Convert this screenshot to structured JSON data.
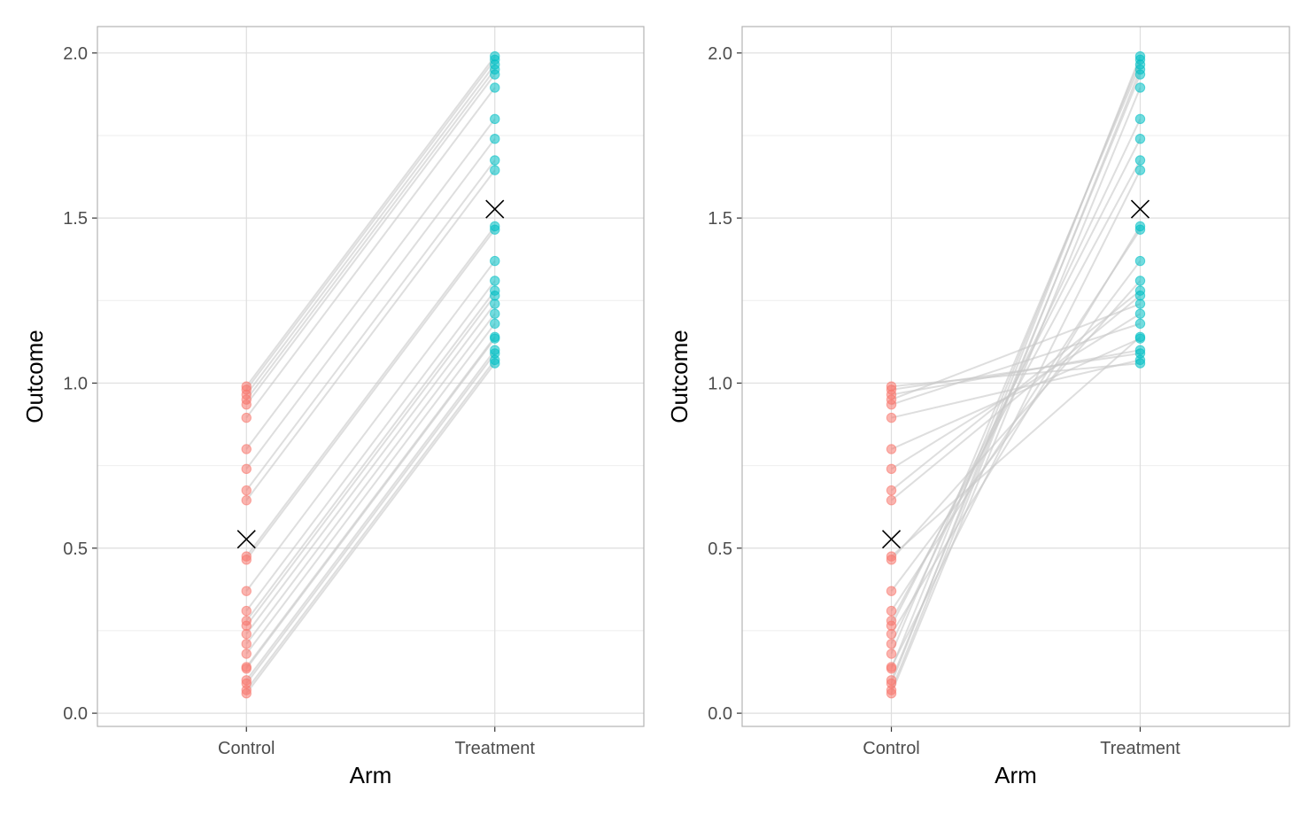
{
  "colors": {
    "control": "#F8766D",
    "treatment": "#00BFC4",
    "pair_line": "#c8c8c8",
    "mean_marker": "#000000",
    "grid_major": "#dedede",
    "grid_minor": "#eeeeee",
    "panel_border": "#b3b3b3"
  },
  "chart_data": [
    {
      "type": "scatter",
      "variant": "paired-lines",
      "xlabel": "Arm",
      "ylabel": "Outcome",
      "categories": [
        "Control",
        "Treatment"
      ],
      "ylim": [
        -0.04,
        2.08
      ],
      "yticks": [
        0.0,
        0.5,
        1.0,
        1.5,
        2.0
      ],
      "ytick_labels": [
        "0.0",
        "0.5",
        "1.0",
        "1.5",
        "2.0"
      ],
      "grid": true,
      "legend": "none",
      "series": [
        {
          "name": "Control",
          "values": [
            0.06,
            0.07,
            0.09,
            0.1,
            0.135,
            0.14,
            0.18,
            0.21,
            0.24,
            0.265,
            0.28,
            0.31,
            0.37,
            0.465,
            0.475,
            0.645,
            0.675,
            0.74,
            0.8,
            0.895,
            0.935,
            0.95,
            0.965,
            0.98,
            0.99
          ]
        },
        {
          "name": "Treatment",
          "values": [
            1.06,
            1.07,
            1.09,
            1.1,
            1.135,
            1.14,
            1.18,
            1.21,
            1.24,
            1.265,
            1.28,
            1.31,
            1.37,
            1.465,
            1.475,
            1.645,
            1.675,
            1.74,
            1.8,
            1.895,
            1.935,
            1.95,
            1.965,
            1.98,
            1.99
          ]
        }
      ],
      "means": [
        0.527,
        1.527
      ]
    },
    {
      "type": "scatter",
      "variant": "paired-lines",
      "xlabel": "Arm",
      "ylabel": "Outcome",
      "categories": [
        "Control",
        "Treatment"
      ],
      "ylim": [
        -0.04,
        2.08
      ],
      "yticks": [
        0.0,
        0.5,
        1.0,
        1.5,
        2.0
      ],
      "ytick_labels": [
        "0.0",
        "0.5",
        "1.0",
        "1.5",
        "2.0"
      ],
      "grid": true,
      "legend": "none",
      "series": [
        {
          "name": "Control",
          "values": [
            0.06,
            0.07,
            0.09,
            0.1,
            0.135,
            0.14,
            0.18,
            0.21,
            0.24,
            0.265,
            0.28,
            0.31,
            0.37,
            0.465,
            0.475,
            0.645,
            0.675,
            0.74,
            0.8,
            0.895,
            0.935,
            0.95,
            0.965,
            0.98,
            0.99
          ]
        },
        {
          "name": "Treatment",
          "values": [
            1.895,
            1.95,
            1.99,
            1.935,
            1.98,
            1.645,
            1.965,
            1.8,
            1.475,
            1.74,
            1.675,
            1.465,
            1.37,
            1.31,
            1.14,
            1.265,
            1.28,
            1.21,
            1.135,
            1.07,
            1.18,
            1.24,
            1.1,
            1.09,
            1.06
          ]
        }
      ],
      "means": [
        0.527,
        1.527
      ]
    }
  ]
}
